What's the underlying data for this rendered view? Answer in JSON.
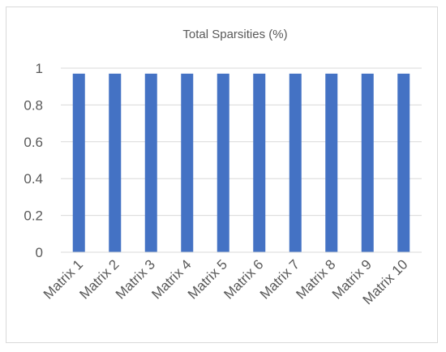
{
  "chart_data": {
    "type": "bar",
    "title": "Total Sparsities (%)",
    "categories": [
      "Matrix 1",
      "Matrix 2",
      "Matrix 3",
      "Matrix 4",
      "Matrix 5",
      "Matrix 6",
      "Matrix 7",
      "Matrix 8",
      "Matrix 9",
      "Matrix 10"
    ],
    "values": [
      0.97,
      0.97,
      0.97,
      0.97,
      0.97,
      0.97,
      0.97,
      0.97,
      0.97,
      0.97
    ],
    "ylim": [
      0,
      1
    ],
    "yticks": [
      "0",
      "0.2",
      "0.4",
      "0.6",
      "0.8",
      "1"
    ],
    "grid": true,
    "legend": "none",
    "bar_color": "#4472c4"
  }
}
